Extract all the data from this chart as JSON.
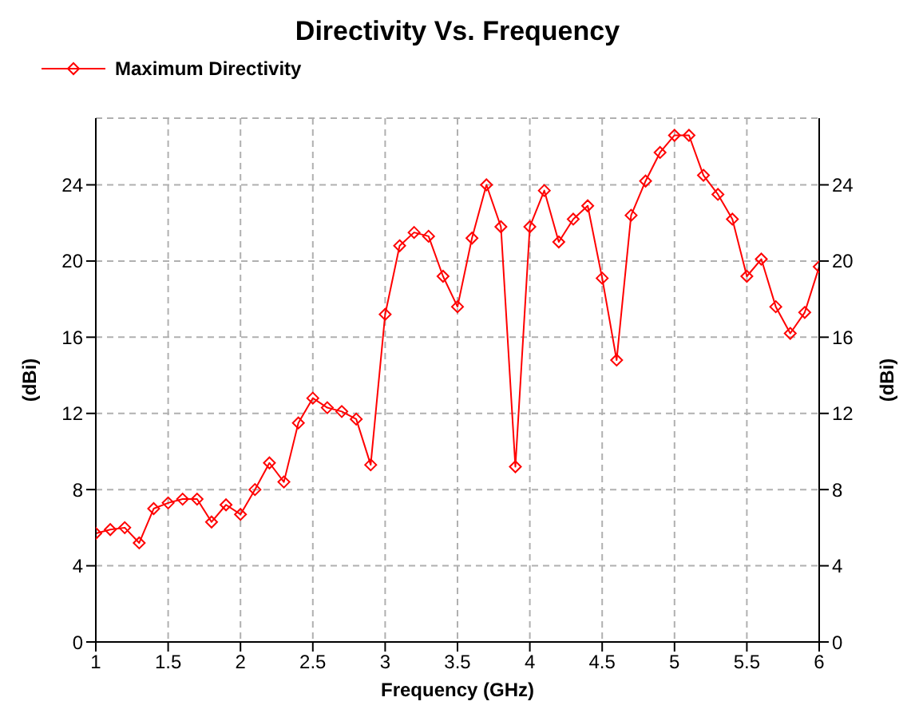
{
  "chart_data": {
    "type": "line",
    "title": "Directivity Vs. Frequency",
    "xlabel": "Frequency (GHz)",
    "ylabel": "(dBi)",
    "y2label": "(dBi)",
    "x": [
      1,
      1.1,
      1.2,
      1.3,
      1.4,
      1.5,
      1.6,
      1.7,
      1.8,
      1.9,
      2,
      2.1,
      2.2,
      2.3,
      2.4,
      2.5,
      2.6,
      2.7,
      2.8,
      2.9,
      3,
      3.1,
      3.2,
      3.3,
      3.4,
      3.5,
      3.6,
      3.7,
      3.8,
      3.9,
      4,
      4.1,
      4.2,
      4.3,
      4.4,
      4.5,
      4.6,
      4.7,
      4.8,
      4.9,
      5,
      5.1,
      5.2,
      5.3,
      5.4,
      5.5,
      5.6,
      5.7,
      5.8,
      5.9,
      6
    ],
    "series": [
      {
        "name": "Maximum Directivity",
        "color": "#ff0000",
        "values": [
          5.7,
          5.9,
          6.0,
          5.2,
          7.0,
          7.3,
          7.5,
          7.5,
          6.3,
          7.2,
          6.7,
          8.0,
          9.4,
          8.4,
          11.5,
          12.8,
          12.3,
          12.1,
          11.7,
          9.3,
          17.2,
          20.8,
          21.5,
          21.3,
          19.2,
          17.6,
          21.2,
          24.0,
          21.8,
          9.2,
          21.8,
          23.7,
          21.0,
          22.2,
          22.9,
          19.1,
          14.8,
          22.4,
          24.2,
          25.7,
          26.6,
          26.6,
          24.5,
          23.5,
          22.2,
          19.2,
          20.1,
          17.6,
          16.2,
          17.3,
          19.7
        ]
      }
    ],
    "xlim": [
      1,
      6
    ],
    "xticks": [
      1,
      1.5,
      2,
      2.5,
      3,
      3.5,
      4,
      4.5,
      5,
      5.5,
      6
    ],
    "ylim": [
      0,
      27.5
    ],
    "yticks": [
      0,
      4,
      8,
      12,
      16,
      20,
      24
    ],
    "y2lim": [
      0,
      27.5
    ],
    "y2ticks": [
      0,
      4,
      8,
      12,
      16,
      20,
      24
    ],
    "grid": true,
    "legend": "top left",
    "marker": "diamond",
    "line_style": "solid"
  }
}
